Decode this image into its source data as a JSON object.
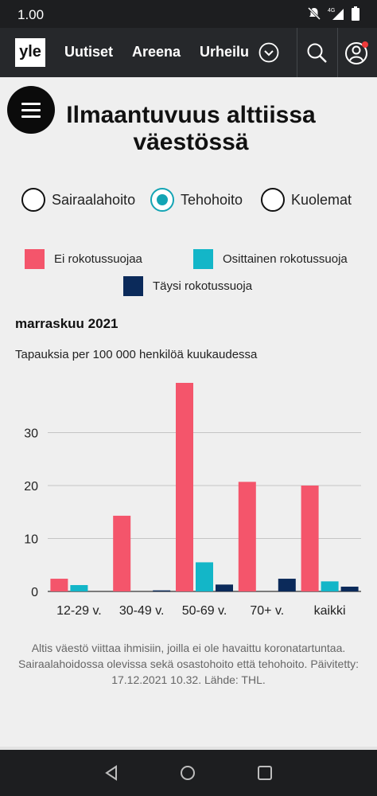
{
  "status_bar": {
    "time": "1.00"
  },
  "nav": {
    "logo": "yle",
    "links": [
      "Uutiset",
      "Areena",
      "Urheilu"
    ]
  },
  "title": "Ilmaantuvuus alttiissa väestössä",
  "options": [
    {
      "label": "Sairaalahoito",
      "selected": false
    },
    {
      "label": "Tehohoito",
      "selected": true
    },
    {
      "label": "Kuolemat",
      "selected": false
    }
  ],
  "legend": [
    {
      "label": "Ei rokotussuojaa",
      "color": "#f4556b"
    },
    {
      "label": "Osittainen rokotussuoja",
      "color": "#13b6c8"
    },
    {
      "label": "Täysi rokotussuoja",
      "color": "#0b2a5a"
    }
  ],
  "chart_data": {
    "type": "bar",
    "title": "marraskuu 2021",
    "ylabel": "Tapauksia per 100 000 henkilöä kuukaudessa",
    "xlabel": "",
    "categories": [
      "12-29 v.",
      "30-49 v.",
      "50-69 v.",
      "70+ v.",
      "kaikki"
    ],
    "series": [
      {
        "name": "Ei rokotussuojaa",
        "values": [
          2.4,
          14.3,
          39.4,
          20.7,
          20.0
        ]
      },
      {
        "name": "Osittainen rokotussuoja",
        "values": [
          1.2,
          0,
          5.5,
          0,
          1.9
        ]
      },
      {
        "name": "Täysi rokotussuoja",
        "values": [
          0,
          0.2,
          1.3,
          2.4,
          0.9
        ]
      }
    ],
    "yticks": [
      0,
      10,
      20,
      30
    ],
    "ylim": [
      0,
      40
    ],
    "grid": true,
    "legend_position": "top"
  },
  "footnote": "Altis väestö viittaa ihmisiin, joilla ei ole havaittu koronatartuntaa. Sairaalahoidossa olevissa sekä osastohoito että tehohoito. Päivitetty: 17.12.2021 10.32. Lähde: THL."
}
